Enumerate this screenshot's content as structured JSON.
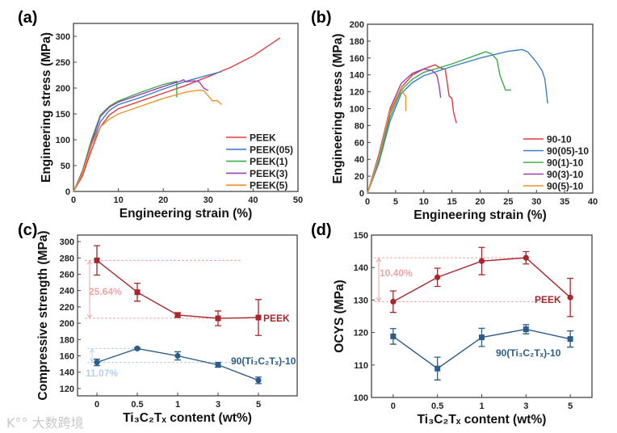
{
  "watermark": "大数跨境",
  "chart_data": [
    {
      "panel_label": "(a)",
      "type": "line",
      "xlabel": "Engineering strain (%)",
      "ylabel": "Engineering stress (MPa)",
      "xlim": [
        0,
        50
      ],
      "ylim": [
        0,
        325
      ],
      "xticks": [
        0,
        10,
        20,
        30,
        40,
        50
      ],
      "yticks": [
        0,
        50,
        100,
        150,
        200,
        250,
        300
      ],
      "legend_position": "bottom-right",
      "series": [
        {
          "name": "PEEK",
          "color": "#e03a3e",
          "points": [
            [
              0,
              0
            ],
            [
              2,
              30
            ],
            [
              4,
              80
            ],
            [
              6,
              125
            ],
            [
              8,
              148
            ],
            [
              10,
              160
            ],
            [
              15,
              175
            ],
            [
              20,
              190
            ],
            [
              25,
              205
            ],
            [
              30,
              222
            ],
            [
              35,
              240
            ],
            [
              40,
              262
            ],
            [
              46,
              297
            ]
          ]
        },
        {
          "name": "PEEK(05)",
          "color": "#3f7fc1",
          "points": [
            [
              0,
              0
            ],
            [
              2,
              35
            ],
            [
              4,
              90
            ],
            [
              6,
              135
            ],
            [
              8,
              157
            ],
            [
              10,
              168
            ],
            [
              15,
              182
            ],
            [
              20,
              198
            ],
            [
              25,
              213
            ],
            [
              30,
              225
            ],
            [
              33,
              232
            ]
          ]
        },
        {
          "name": "PEEK(1)",
          "color": "#3aae4a",
          "points": [
            [
              0,
              0
            ],
            [
              2,
              40
            ],
            [
              4,
              100
            ],
            [
              6,
              148
            ],
            [
              8,
              165
            ],
            [
              10,
              175
            ],
            [
              15,
              192
            ],
            [
              20,
              207
            ],
            [
              23,
              213
            ],
            [
              23,
              182
            ]
          ]
        },
        {
          "name": "PEEK(3)",
          "color": "#9b3fb5",
          "points": [
            [
              0,
              0
            ],
            [
              2,
              38
            ],
            [
              4,
              95
            ],
            [
              6,
              145
            ],
            [
              8,
              163
            ],
            [
              10,
              173
            ],
            [
              15,
              188
            ],
            [
              20,
              203
            ],
            [
              24,
              214
            ],
            [
              24.5,
              216
            ],
            [
              25,
              212
            ],
            [
              27,
              214
            ],
            [
              28,
              212
            ],
            [
              29,
              200
            ],
            [
              30,
              195
            ]
          ]
        },
        {
          "name": "PEEK(5)",
          "color": "#f0922b",
          "points": [
            [
              0,
              0
            ],
            [
              2,
              35
            ],
            [
              4,
              90
            ],
            [
              6,
              125
            ],
            [
              8,
              140
            ],
            [
              10,
              150
            ],
            [
              15,
              165
            ],
            [
              20,
              180
            ],
            [
              25,
              192
            ],
            [
              28,
              196
            ],
            [
              29,
              195
            ],
            [
              30,
              185
            ],
            [
              31,
              175
            ],
            [
              32,
              176
            ],
            [
              33,
              168
            ]
          ]
        }
      ]
    },
    {
      "panel_label": "(b)",
      "type": "line",
      "xlabel": "Engineering strain (%)",
      "ylabel": "Engineering stress (MPa)",
      "xlim": [
        0,
        40
      ],
      "ylim": [
        0,
        200
      ],
      "xticks": [
        0,
        5,
        10,
        15,
        20,
        25,
        30,
        35,
        40
      ],
      "yticks": [
        0,
        20,
        40,
        60,
        80,
        100,
        120,
        140,
        160,
        180,
        200
      ],
      "legend_position": "bottom-right",
      "series": [
        {
          "name": "90-10",
          "color": "#e03a3e",
          "points": [
            [
              0,
              0
            ],
            [
              2,
              40
            ],
            [
              4,
              95
            ],
            [
              6,
              125
            ],
            [
              8,
              140
            ],
            [
              10,
              147
            ],
            [
              12,
              152
            ],
            [
              13,
              148
            ],
            [
              13.8,
              147
            ],
            [
              14.5,
              115
            ],
            [
              15,
              112
            ],
            [
              15.3,
              95
            ],
            [
              15.8,
              83
            ]
          ]
        },
        {
          "name": "90(05)-10",
          "color": "#3f7fc1",
          "points": [
            [
              0,
              0
            ],
            [
              2,
              35
            ],
            [
              4,
              85
            ],
            [
              6,
              118
            ],
            [
              8,
              131
            ],
            [
              10,
              139
            ],
            [
              15,
              150
            ],
            [
              20,
              160
            ],
            [
              25,
              168
            ],
            [
              27.5,
              170
            ],
            [
              28.5,
              167
            ],
            [
              30,
              155
            ],
            [
              31,
              145
            ],
            [
              31.5,
              135
            ],
            [
              32,
              106
            ]
          ]
        },
        {
          "name": "90(1)-10",
          "color": "#3aae4a",
          "points": [
            [
              0,
              0
            ],
            [
              2,
              38
            ],
            [
              4,
              90
            ],
            [
              6,
              122
            ],
            [
              8,
              135
            ],
            [
              10,
              143
            ],
            [
              15,
              153
            ],
            [
              20,
              165
            ],
            [
              21,
              167.5
            ],
            [
              22,
              165
            ],
            [
              23,
              158
            ],
            [
              23.5,
              140
            ],
            [
              24.5,
              122
            ],
            [
              25.5,
              122
            ]
          ]
        },
        {
          "name": "90(3)-10",
          "color": "#9b3fb5",
          "points": [
            [
              0,
              0
            ],
            [
              2,
              45
            ],
            [
              4,
              100
            ],
            [
              6,
              130
            ],
            [
              8,
              142
            ],
            [
              10,
              147
            ],
            [
              11.5,
              145
            ],
            [
              12.3,
              140
            ],
            [
              12.7,
              128
            ],
            [
              13,
              113
            ]
          ]
        },
        {
          "name": "90(5)-10",
          "color": "#f0922b",
          "points": [
            [
              0,
              0
            ],
            [
              2,
              42
            ],
            [
              4,
              98
            ],
            [
              6,
              125
            ],
            [
              6.5,
              117
            ],
            [
              6.8,
              115
            ],
            [
              6.8,
              97
            ]
          ]
        }
      ]
    },
    {
      "panel_label": "(c)",
      "type": "line",
      "xlabel": "Ti₃C₂Tₓ content (wt%)",
      "ylabel": "Compressive strength (MPa)",
      "categories": [
        "0",
        "0.5",
        "1",
        "3",
        "5"
      ],
      "ylim": [
        111,
        308
      ],
      "yticks": [
        120,
        140,
        160,
        180,
        200,
        220,
        240,
        260,
        280,
        300
      ],
      "series": [
        {
          "name": "PEEK",
          "color": "#a8262b",
          "marker": "square",
          "values": [
            277,
            238,
            210,
            206,
            207
          ],
          "errors": [
            18,
            11,
            3,
            9,
            22
          ]
        },
        {
          "name": "90(Ti₃C₂Tₓ)-10",
          "color": "#2c5d8a",
          "marker": "circle",
          "values": [
            152,
            169,
            160,
            149,
            130
          ],
          "errors": [
            4,
            1,
            5,
            3,
            4
          ]
        }
      ],
      "annotations": [
        {
          "text": "25.64%",
          "from": 277,
          "to": 206,
          "color": "#f2a3a6"
        },
        {
          "text": "11.07%",
          "from": 169,
          "to": 152,
          "color": "#b5d0ea"
        }
      ]
    },
    {
      "panel_label": "(d)",
      "type": "line",
      "xlabel": "Ti₃C₂Tₓ content (wt%)",
      "ylabel": "OCYS (MPa)",
      "categories": [
        "0",
        "0.5",
        "1",
        "3",
        "5"
      ],
      "ylim": [
        100,
        150
      ],
      "yticks": [
        100,
        110,
        120,
        130,
        140,
        150
      ],
      "series": [
        {
          "name": "PEEK",
          "color": "#a8262b",
          "marker": "circle",
          "values": [
            129.5,
            137,
            142,
            143,
            130.8
          ],
          "errors": [
            3.3,
            2.8,
            4.2,
            1.9,
            5.9
          ]
        },
        {
          "name": "90(Ti₃C₂Tₓ)-10",
          "color": "#2c5d8a",
          "marker": "square",
          "values": [
            118.8,
            108.9,
            118.5,
            121,
            118
          ],
          "errors": [
            2.4,
            3.5,
            2.8,
            1.4,
            2.5
          ]
        }
      ],
      "annotations": [
        {
          "text": "10.40%",
          "from": 143,
          "to": 129.5,
          "color": "#f2a3a6"
        }
      ]
    }
  ]
}
